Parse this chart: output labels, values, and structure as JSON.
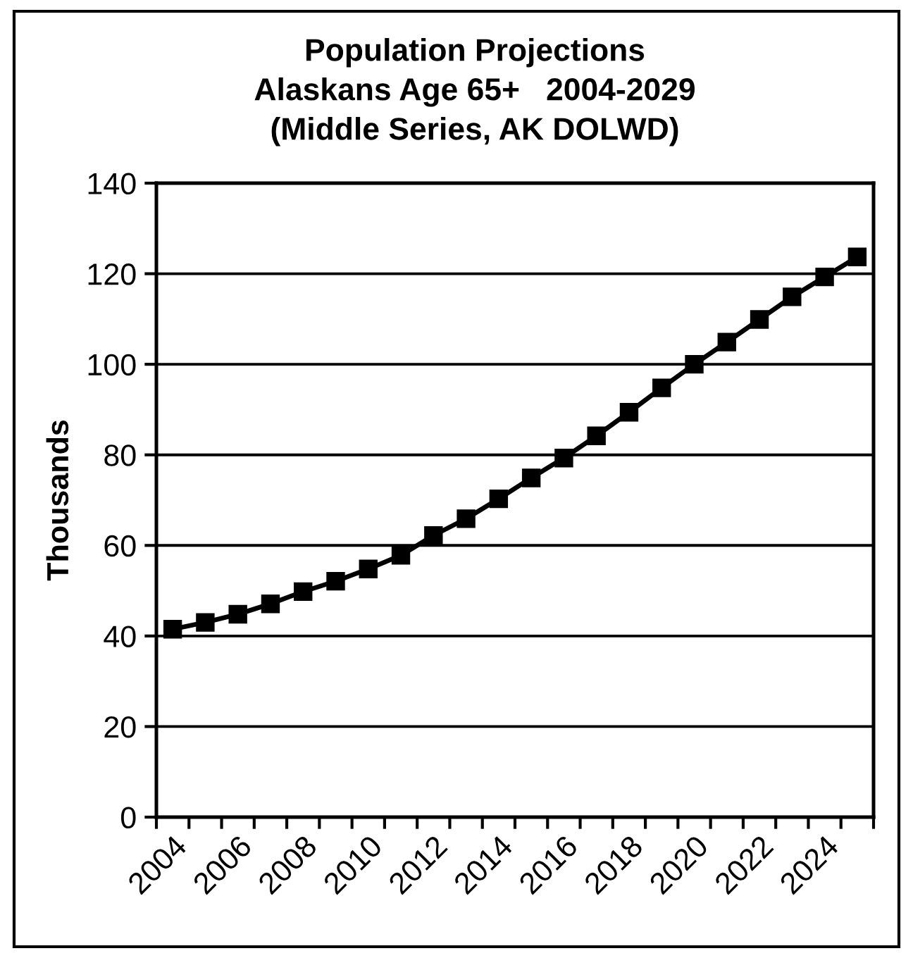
{
  "chart_data": {
    "type": "line",
    "title": "Population Projections\nAlaskans Age 65+   2004-2029\n(Middle Series, AK DOLWD)",
    "ylabel": "Thousands",
    "categories": [
      "2004",
      null,
      "2006",
      null,
      "2008",
      null,
      "2010",
      null,
      "2012",
      null,
      "2014",
      null,
      "2016",
      null,
      "2018",
      null,
      "2020",
      null,
      "2022",
      null,
      "2024",
      null
    ],
    "series": [
      {
        "color": "#000000",
        "values": [
          41.5,
          43.0,
          44.8,
          47.1,
          49.8,
          52.1,
          54.8,
          57.8,
          62.2,
          65.9,
          70.3,
          74.9,
          79.3,
          84.2,
          89.4,
          94.8,
          100.0,
          104.9,
          109.9,
          114.9,
          119.3,
          123.7
        ]
      }
    ],
    "ylim": [
      0,
      140
    ],
    "yticks": [
      0,
      20,
      40,
      60,
      80,
      100,
      120,
      140
    ],
    "grid": "y",
    "marker": "square",
    "line_style": "solid"
  }
}
